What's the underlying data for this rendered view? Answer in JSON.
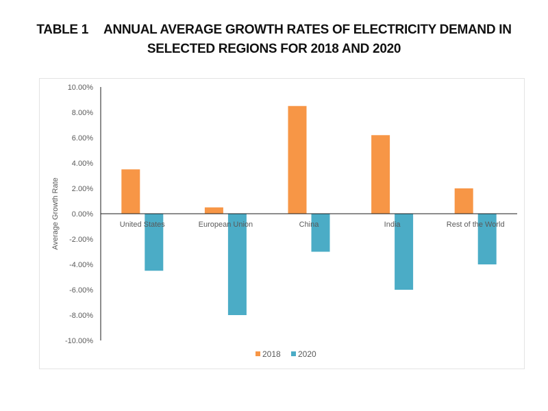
{
  "title": {
    "prefix": "TABLE 1",
    "line1": "ANNUAL AVERAGE GROWTH RATES OF ELECTRICITY DEMAND IN",
    "line2": "SELECTED REGIONS FOR 2018 AND 2020"
  },
  "chart_data": {
    "type": "bar",
    "title": "TABLE 1 ANNUAL AVERAGE GROWTH RATES OF ELECTRICITY DEMAND IN SELECTED REGIONS FOR 2018 AND 2020",
    "xlabel": "",
    "ylabel": "Average Growth Rate",
    "ylim": [
      -10,
      10
    ],
    "y_ticks": [
      10,
      8,
      6,
      4,
      2,
      0,
      -2,
      -4,
      -6,
      -8,
      -10
    ],
    "y_tick_labels": [
      "10.00%",
      "8.00%",
      "6.00%",
      "4.00%",
      "2.00%",
      "0.00%",
      "-2.00%",
      "-4.00%",
      "-6.00%",
      "-8.00%",
      "-10.00%"
    ],
    "grid": false,
    "legend_position": "bottom",
    "categories": [
      "United States",
      "European Union",
      "China",
      "India",
      "Rest of the World"
    ],
    "series": [
      {
        "name": "2018",
        "color": "#F79646",
        "values": [
          3.5,
          0.5,
          8.5,
          6.2,
          2.0
        ]
      },
      {
        "name": "2020",
        "color": "#4BACC6",
        "values": [
          -4.5,
          -8.0,
          -3.0,
          -6.0,
          -4.0
        ]
      }
    ]
  }
}
